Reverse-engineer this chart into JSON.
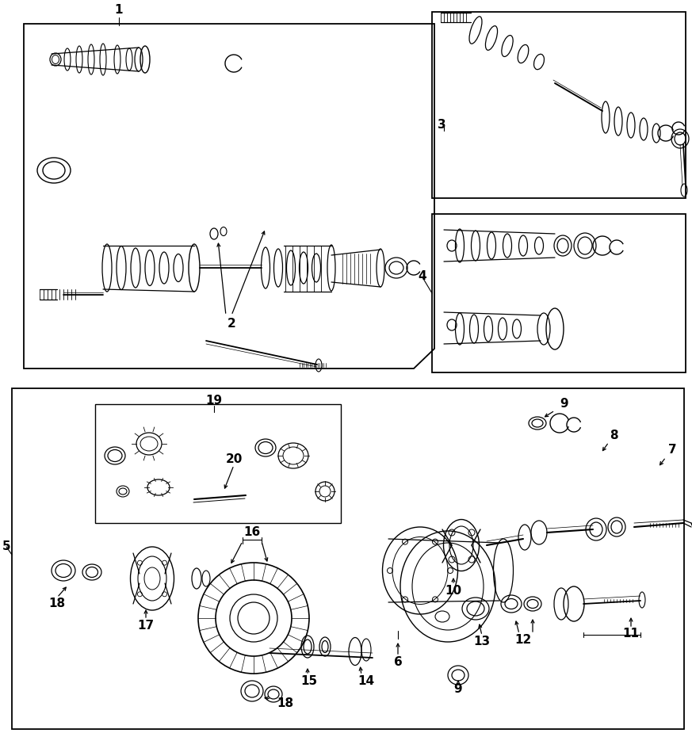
{
  "bg_color": "#ffffff",
  "line_color": "#000000",
  "fig_width": 8.73,
  "fig_height": 9.3,
  "dpi": 100
}
